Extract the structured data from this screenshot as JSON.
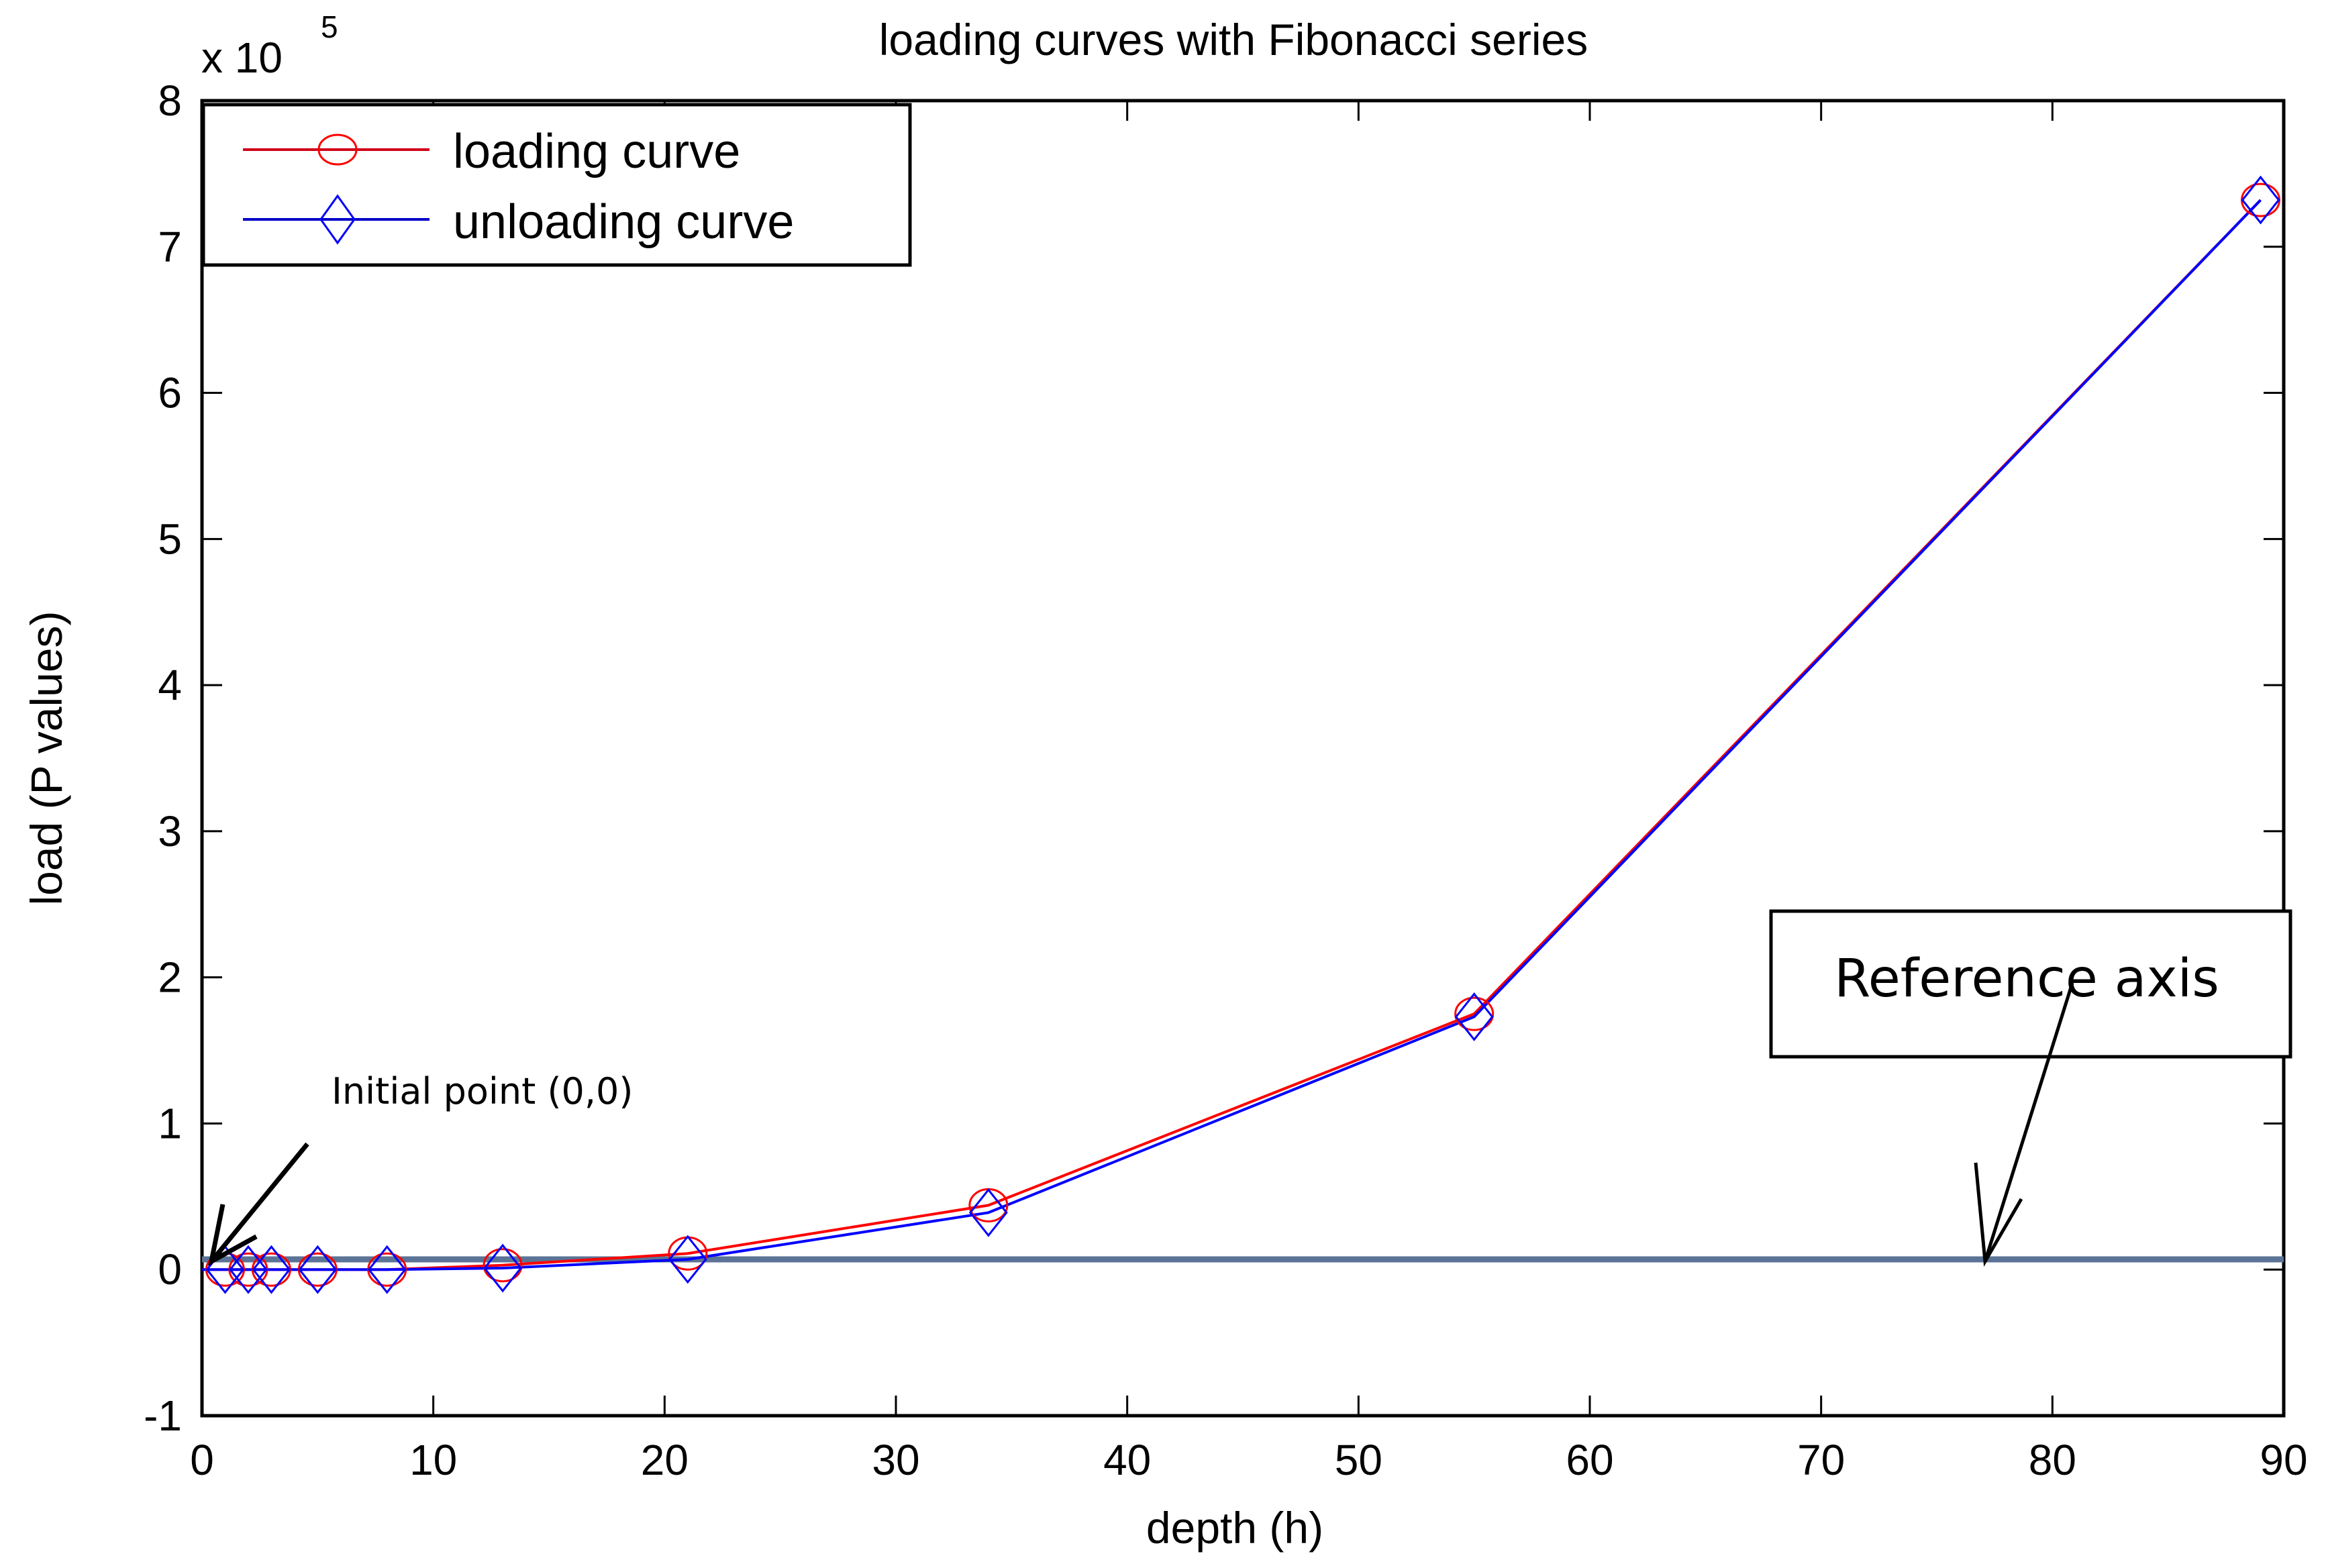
{
  "chart_data": {
    "type": "line",
    "title": "loading curves with Fibonacci series",
    "xlabel": "depth (h)",
    "ylabel": "load (P values)",
    "y_multiplier": "x 10",
    "y_multiplier_exp": "5",
    "xlim": [
      0,
      90
    ],
    "ylim": [
      -1,
      8
    ],
    "grid": false,
    "legend_position": "upper left",
    "x_ticks": [
      "0",
      "10",
      "20",
      "30",
      "40",
      "50",
      "60",
      "70",
      "80",
      "90"
    ],
    "y_ticks": [
      "-1",
      "0",
      "1",
      "2",
      "3",
      "4",
      "5",
      "6",
      "7",
      "8"
    ],
    "x": [
      1,
      2,
      3,
      5,
      8,
      13,
      21,
      34,
      55,
      89
    ],
    "series": [
      {
        "name": "loading curve",
        "color": "#ff0000",
        "marker": "circle",
        "values": [
          0.0,
          0.0,
          0.0,
          0.0,
          0.0,
          0.03,
          0.11,
          0.44,
          1.75,
          7.32
        ]
      },
      {
        "name": "unloading curve",
        "color": "#0000ff",
        "marker": "diamond",
        "values": [
          0.0,
          0.0,
          0.0,
          0.0,
          0.0,
          0.01,
          0.07,
          0.39,
          1.73,
          7.32
        ]
      }
    ],
    "reference_line": {
      "y": 0.07,
      "color": "#5b7396"
    },
    "annotations": [
      {
        "text": "Initial point (0,0)",
        "points_to": [
          0,
          0
        ]
      },
      {
        "text": "Reference axis",
        "points_to": [
          77,
          0.07
        ]
      }
    ]
  },
  "legend": {
    "items": [
      {
        "label": "loading curve",
        "color": "#ff0000",
        "marker": "circle-icon"
      },
      {
        "label": "unloading curve",
        "color": "#0000ff",
        "marker": "diamond-icon"
      }
    ]
  },
  "annotations": {
    "initial_point": "Initial point (0,0)",
    "reference_axis": "Reference axis"
  }
}
